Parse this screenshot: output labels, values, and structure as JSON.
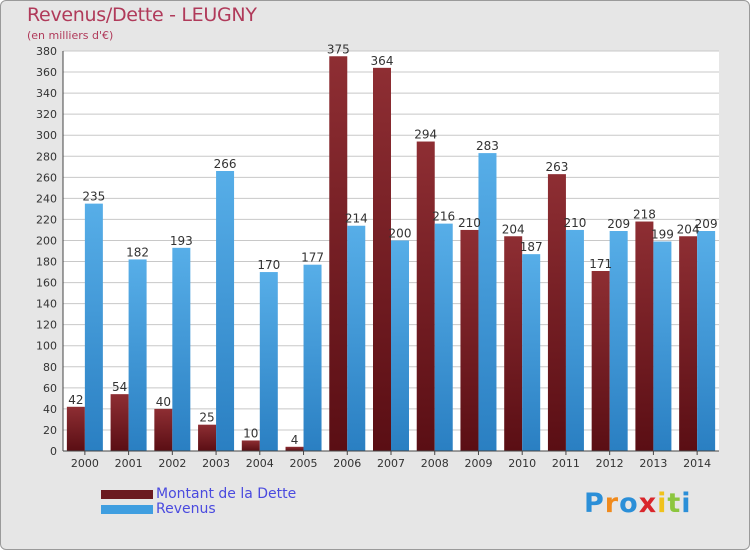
{
  "header": {
    "title": "Revenus/Dette - LEUGNY",
    "subtitle": "(en milliers d'€)"
  },
  "chart_data": {
    "type": "bar",
    "title": "Revenus/Dette - LEUGNY",
    "subtitle": "(en milliers d'€)",
    "categories": [
      "2000",
      "2001",
      "2002",
      "2003",
      "2004",
      "2005",
      "2006",
      "2007",
      "2008",
      "2009",
      "2010",
      "2011",
      "2012",
      "2013",
      "2014"
    ],
    "series": [
      {
        "name": "Montant de la Dette",
        "color": "#7a1f26",
        "values": [
          42,
          54,
          40,
          25,
          10,
          4,
          375,
          364,
          294,
          210,
          204,
          263,
          171,
          218,
          204
        ]
      },
      {
        "name": "Revenus",
        "color": "#3f9ee0",
        "values": [
          235,
          182,
          193,
          266,
          170,
          177,
          214,
          200,
          216,
          283,
          187,
          210,
          209,
          199,
          209
        ]
      }
    ],
    "ylim": [
      0,
      380
    ],
    "ytick_step": 20,
    "grid": true,
    "legend_position": "bottom-left"
  },
  "legend": {
    "items": [
      {
        "label": "Montant de la Dette",
        "color": "#6b1a20"
      },
      {
        "label": "Revenus",
        "color": "#3f9ee0"
      }
    ]
  },
  "logo": {
    "letters": [
      "P",
      "r",
      "o",
      "x",
      "i",
      "t",
      "i"
    ],
    "colors": [
      "#2b8fd8",
      "#f08a1c",
      "#2b8fd8",
      "#d9262b",
      "#f0c21c",
      "#8cc63f",
      "#2b8fd8"
    ]
  }
}
